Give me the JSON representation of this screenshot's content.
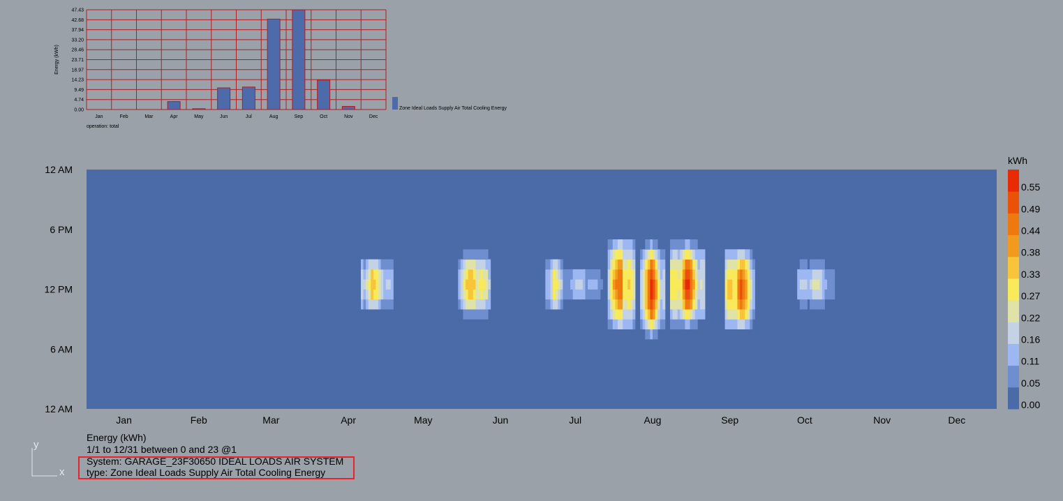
{
  "chart_data": [
    {
      "type": "bar",
      "categories": [
        "Jan",
        "Feb",
        "Mar",
        "Apr",
        "May",
        "Jun",
        "Jul",
        "Aug",
        "Sep",
        "Oct",
        "Nov",
        "Dec"
      ],
      "values": [
        0,
        0,
        0,
        3.8,
        0.4,
        10.3,
        10.7,
        43.0,
        47.4,
        14.0,
        1.5,
        0
      ],
      "ylabel": "Energy (kWh)",
      "yticks": [
        "0.00",
        "4.74",
        "9.49",
        "14.23",
        "18.97",
        "23.71",
        "28.46",
        "33.20",
        "37.94",
        "42.68",
        "47.43"
      ],
      "ylim": [
        0,
        47.43
      ],
      "grid": true,
      "legend": "Zone Ideal Loads Supply Air Total Cooling Energy",
      "note": "operation: total",
      "bar_color": "#4d6aab",
      "grid_color": "#b01e22"
    },
    {
      "type": "heatmap",
      "x_labels": [
        "Jan",
        "Feb",
        "Mar",
        "Apr",
        "May",
        "Jun",
        "Jul",
        "Aug",
        "Sep",
        "Oct",
        "Nov",
        "Dec"
      ],
      "y_labels": [
        "12 AM",
        "6 PM",
        "12 PM",
        "6 AM",
        "12 AM"
      ],
      "legend_title": "kWh",
      "legend_ticks": [
        "0.00",
        "0.05",
        "0.11",
        "0.16",
        "0.22",
        "0.27",
        "0.33",
        "0.38",
        "0.44",
        "0.49",
        "0.55"
      ],
      "value_range": [
        0,
        0.6
      ],
      "colors": [
        "#4b6aa8",
        "#6f8ed0",
        "#9db7f2",
        "#c3d2e4",
        "#dfe3a8",
        "#f8ea58",
        "#f7c43a",
        "#f29a1e",
        "#ee7a0f",
        "#ea5208",
        "#e82b05"
      ],
      "x_range": [
        "1/1",
        "12/31"
      ],
      "hours": [
        0,
        23
      ],
      "clusters": [
        {
          "day_start": 110,
          "day_end": 122,
          "peak_day": 114,
          "center_hour": 12.5,
          "half_hours": 2.5,
          "intensity": 0.65
        },
        {
          "day_start": 149,
          "day_end": 161,
          "peak_day": 155,
          "center_hour": 12.5,
          "half_hours": 3.0,
          "intensity": 0.8
        },
        {
          "day_start": 184,
          "day_end": 190,
          "peak_day": 187,
          "center_hour": 12.5,
          "half_hours": 2.5,
          "intensity": 0.65
        },
        {
          "day_start": 191,
          "day_end": 206,
          "peak_day": 198,
          "center_hour": 12.5,
          "half_hours": 1.5,
          "intensity": 0.35
        },
        {
          "day_start": 209,
          "day_end": 219,
          "peak_day": 214,
          "center_hour": 12.5,
          "half_hours": 4.5,
          "intensity": 1.0
        },
        {
          "day_start": 222,
          "day_end": 231,
          "peak_day": 226,
          "center_hour": 12.0,
          "half_hours": 4.5,
          "intensity": 1.0
        },
        {
          "day_start": 234,
          "day_end": 247,
          "peak_day": 240,
          "center_hour": 12.5,
          "half_hours": 4.0,
          "intensity": 1.0
        },
        {
          "day_start": 256,
          "day_end": 267,
          "peak_day": 261,
          "center_hour": 12.0,
          "half_hours": 4.0,
          "intensity": 1.0
        },
        {
          "day_start": 285,
          "day_end": 299,
          "peak_day": 291,
          "center_hour": 12.5,
          "half_hours": 2.0,
          "intensity": 0.45
        }
      ]
    }
  ],
  "info": {
    "line1": "Energy (kWh)",
    "line2": "1/1 to 12/31 between 0 and 23 @1",
    "line3": "System: GARAGE_23F30650 IDEAL LOADS AIR SYSTEM",
    "line4": "type: Zone Ideal Loads Supply Air Total Cooling Energy"
  },
  "axes_glyph": {
    "y": "y",
    "x": "x"
  }
}
